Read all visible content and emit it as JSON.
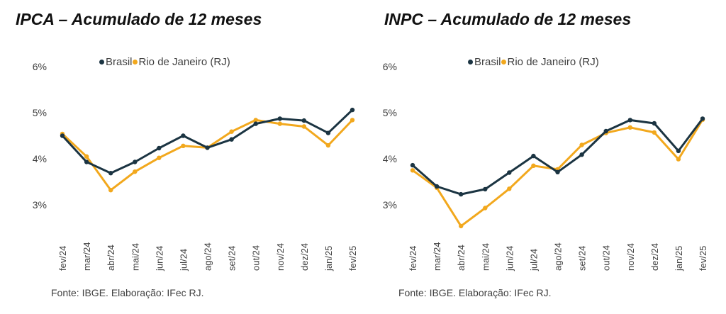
{
  "colors": {
    "brasil": "#1b3442",
    "rj": "#f2a81d",
    "text": "#404040"
  },
  "chart_data": [
    {
      "type": "line",
      "title": "IPCA – Acumulado de 12 meses",
      "categories": [
        "fev/24",
        "mar/24",
        "abr/24",
        "mai/24",
        "jun/24",
        "jul/24",
        "ago/24",
        "set/24",
        "out/24",
        "nov/24",
        "dez/24",
        "jan/25",
        "fev/25"
      ],
      "y_ticks": [
        "6%",
        "5%",
        "4%",
        "3%"
      ],
      "ylim": [
        2.5,
        6.2
      ],
      "series": [
        {
          "name": "Brasil",
          "color": "#1b3442",
          "values": [
            4.5,
            3.93,
            3.69,
            3.93,
            4.23,
            4.5,
            4.24,
            4.42,
            4.76,
            4.87,
            4.83,
            4.56,
            5.06
          ]
        },
        {
          "name": "Rio de Janeiro (RJ)",
          "color": "#f2a81d",
          "values": [
            4.54,
            4.05,
            3.32,
            3.72,
            4.02,
            4.28,
            4.24,
            4.59,
            4.84,
            4.76,
            4.7,
            4.29,
            4.84
          ]
        }
      ],
      "legend_position": "top",
      "source": "Fonte: IBGE. Elaboração: IFec RJ."
    },
    {
      "type": "line",
      "title": "INPC – Acumulado de 12 meses",
      "categories": [
        "fev/24",
        "mar/24",
        "abr/24",
        "mai/24",
        "jun/24",
        "jul/24",
        "ago/24",
        "set/24",
        "out/24",
        "nov/24",
        "dez/24",
        "jan/25",
        "fev/25"
      ],
      "y_ticks": [
        "6%",
        "5%",
        "4%",
        "3%"
      ],
      "ylim": [
        2.5,
        6.2
      ],
      "series": [
        {
          "name": "Brasil",
          "color": "#1b3442",
          "values": [
            3.86,
            3.4,
            3.23,
            3.34,
            3.7,
            4.06,
            3.71,
            4.09,
            4.6,
            4.84,
            4.77,
            4.17,
            4.87
          ]
        },
        {
          "name": "Rio de Janeiro (RJ)",
          "color": "#f2a81d",
          "values": [
            3.75,
            3.37,
            2.54,
            2.93,
            3.35,
            3.85,
            3.77,
            4.3,
            4.56,
            4.68,
            4.57,
            3.99,
            4.85
          ]
        }
      ],
      "legend_position": "top",
      "source": "Fonte: IBGE. Elaboração: IFec RJ."
    }
  ]
}
